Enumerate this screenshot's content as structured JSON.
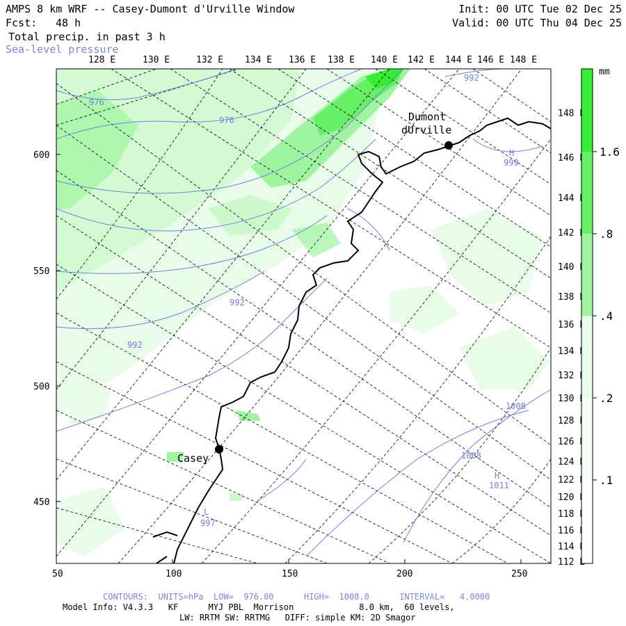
{
  "header": {
    "title": "AMPS 8 km WRF -- Casey-Dumont d'Urville Window",
    "fcst_label": "Fcst:",
    "fcst_value": "48 h",
    "field": "Total precip. in past 3 h",
    "overlay": "Sea-level pressure",
    "init": "Init: 00 UTC Tue 02 Dec 25",
    "valid": "Valid: 00 UTC Thu 04 Dec 25"
  },
  "top_lon_labels": [
    "128 E",
    "130 E",
    "132 E",
    "134 E",
    "136 E",
    "138 E",
    "140 E",
    "142 E",
    "144 E",
    "146 E",
    "148 E"
  ],
  "right_lon_labels": [
    "148 E",
    "146 E",
    "144 E",
    "142 E",
    "140 E",
    "138 E",
    "136 E",
    "134 E",
    "132 E",
    "130 E",
    "128 E",
    "126 E",
    "124 E",
    "122 E",
    "120 E",
    "118 E",
    "116 E",
    "114 E",
    "112 E"
  ],
  "x_ticks": [
    "50",
    "100",
    "150",
    "200",
    "250"
  ],
  "y_ticks": [
    "600",
    "550",
    "500",
    "450"
  ],
  "colorbar": {
    "unit": "mm",
    "labels": [
      "1.6",
      ".8",
      ".4",
      ".2",
      ".1"
    ],
    "colors": [
      "#33ee33",
      "#66f066",
      "#9ff59f",
      "#cdf9cd",
      "#e9fce9",
      "#ffffff"
    ]
  },
  "stations": [
    {
      "name": "Casey"
    },
    {
      "name_line1": "Dumont",
      "name_line2": "dUrville"
    }
  ],
  "pressure_labels": [
    "976",
    "976",
    "992",
    "992",
    "992",
    "1008",
    "1008",
    "997",
    "999",
    "1011"
  ],
  "pressure_marks": [
    "L",
    "H",
    "H"
  ],
  "footer": {
    "contours": "CONTOURS:  UNITS=hPa  LOW=  976.00      HIGH=  1008.0      INTERVAL=   4.0000",
    "model_line1": "Model Info: V4.3.3   KF      MYJ PBL  Morrison             8.0 km,  60 levels,",
    "model_line2": "LW: RRTM SW: RRTMG   DIFF: simple KM: 2D Smagor"
  },
  "colors": {
    "contour": "#6f7fe0",
    "coast": "#000000",
    "grid": "#000000"
  }
}
